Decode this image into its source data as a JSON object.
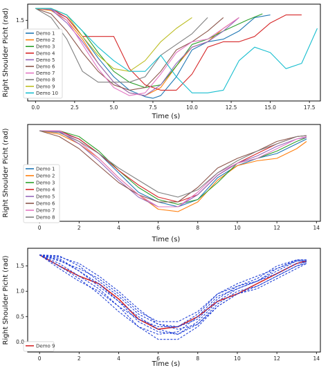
{
  "colors": [
    "#1f77b4",
    "#ff7f0e",
    "#2ca02c",
    "#d62728",
    "#9467bd",
    "#8c564b",
    "#e377c2",
    "#7f7f7f",
    "#bcbd22",
    "#17becf"
  ],
  "chart_data": [
    {
      "type": "line",
      "ylabel": "Right Shoulder Picht (rad)",
      "xlabel": "Time (s)",
      "xlim": [
        -0.5,
        18.2
      ],
      "ylim": [
        0.0,
        1.8
      ],
      "xticks": [
        0.0,
        2.5,
        5.0,
        7.5,
        10.0,
        12.5,
        15.0,
        17.5
      ],
      "xticklabels": [
        "0.0",
        "2.5",
        "5.0",
        "7.5",
        "10.0",
        "12.5",
        "15.0",
        "17.5"
      ],
      "yticks": [
        0.5,
        1.0,
        1.5
      ],
      "yticklabels": [
        "",
        "",
        "1.5"
      ],
      "legend": "left",
      "series": [
        {
          "name": "Demo 1",
          "x": [
            0,
            1,
            2,
            3,
            4,
            5,
            6,
            7,
            7.5,
            8,
            9,
            10,
            11,
            12,
            13,
            14,
            15
          ],
          "y": [
            1.72,
            1.7,
            1.55,
            1.2,
            0.8,
            0.45,
            0.2,
            0.08,
            0.05,
            0.1,
            0.45,
            0.95,
            1.1,
            1.15,
            1.3,
            1.55,
            1.6
          ]
        },
        {
          "name": "Demo 2",
          "x": [
            0,
            1,
            2,
            3,
            4,
            5,
            6,
            7,
            8,
            9,
            10,
            11,
            12,
            13
          ],
          "y": [
            1.72,
            1.68,
            1.5,
            1.15,
            0.7,
            0.35,
            0.15,
            0.1,
            0.25,
            0.65,
            1.0,
            1.1,
            1.35,
            1.55
          ]
        },
        {
          "name": "Demo 3",
          "x": [
            0,
            1,
            2,
            3,
            4,
            5,
            6,
            7,
            8,
            9,
            10,
            11,
            12,
            13.5,
            14.5
          ],
          "y": [
            1.72,
            1.72,
            1.6,
            1.3,
            0.9,
            0.55,
            0.35,
            0.25,
            0.3,
            0.65,
            1.05,
            1.15,
            1.3,
            1.5,
            1.62
          ]
        },
        {
          "name": "Demo 4",
          "x": [
            0,
            1,
            2,
            3,
            4,
            5,
            6,
            7,
            8,
            9,
            10,
            11,
            12,
            13,
            14,
            15,
            16,
            17
          ],
          "y": [
            1.72,
            1.72,
            1.55,
            1.2,
            1.2,
            1.2,
            0.6,
            0.3,
            0.2,
            0.2,
            0.5,
            1.0,
            1.1,
            1.1,
            1.2,
            1.45,
            1.6,
            1.6
          ]
        },
        {
          "name": "Demo 5",
          "x": [
            0,
            1,
            2,
            3,
            4,
            5,
            6,
            7,
            8,
            9,
            10,
            11,
            12,
            13
          ],
          "y": [
            1.72,
            1.7,
            1.45,
            1.1,
            0.7,
            0.35,
            0.15,
            0.1,
            0.3,
            0.7,
            1.0,
            1.1,
            1.3,
            1.55
          ]
        },
        {
          "name": "Demo 6",
          "x": [
            0,
            1,
            2,
            3,
            4,
            5,
            6,
            7,
            8,
            9,
            10,
            11,
            12
          ],
          "y": [
            1.72,
            1.62,
            1.3,
            0.9,
            0.55,
            0.3,
            0.2,
            0.25,
            0.55,
            0.95,
            1.1,
            1.3,
            1.55
          ]
        },
        {
          "name": "Demo 7",
          "x": [
            0,
            1,
            2,
            3,
            4,
            5,
            6,
            7,
            8,
            9,
            10,
            11,
            12,
            13
          ],
          "y": [
            1.72,
            1.72,
            1.5,
            1.05,
            0.6,
            0.25,
            0.1,
            0.15,
            0.5,
            0.9,
            1.1,
            1.15,
            1.35,
            1.55
          ]
        },
        {
          "name": "Demo 8",
          "x": [
            0,
            1,
            2,
            3,
            4,
            5,
            6,
            7,
            8,
            9,
            10,
            11
          ],
          "y": [
            1.72,
            1.55,
            1.15,
            0.55,
            0.35,
            0.35,
            0.35,
            0.45,
            0.85,
            1.05,
            1.25,
            1.55
          ]
        },
        {
          "name": "Demo 9",
          "x": [
            0,
            1,
            2,
            3,
            4,
            5,
            6,
            7,
            8,
            9,
            10
          ],
          "y": [
            1.72,
            1.72,
            1.6,
            1.2,
            0.85,
            0.6,
            0.55,
            0.75,
            1.1,
            1.35,
            1.55
          ]
        },
        {
          "name": "Demo 10",
          "x": [
            0,
            1,
            2,
            3,
            4,
            5,
            6,
            7,
            8,
            9,
            10,
            11,
            12,
            13,
            14,
            15,
            16,
            17,
            18
          ],
          "y": [
            1.72,
            1.72,
            1.6,
            1.3,
            1.0,
            0.75,
            0.55,
            0.55,
            0.85,
            0.45,
            0.15,
            0.15,
            0.2,
            0.75,
            1.0,
            0.9,
            0.6,
            0.7,
            1.35
          ]
        }
      ]
    },
    {
      "type": "line",
      "ylabel": "Right Shoulder Picht (rad)",
      "xlabel": "Time (s)",
      "xlim": [
        -0.6,
        14.2
      ],
      "ylim": [
        -0.15,
        1.85
      ],
      "xticks": [
        0,
        2,
        4,
        6,
        8,
        10,
        12,
        14
      ],
      "xticklabels": [
        "0",
        "2",
        "4",
        "6",
        "8",
        "10",
        "12",
        "14"
      ],
      "yticks": [],
      "yticklabels": [],
      "legend": "left",
      "series": [
        {
          "name": "Demo 1",
          "x": [
            0,
            1,
            2,
            3,
            4,
            5,
            6,
            7,
            8,
            9,
            10,
            11,
            12,
            13,
            13.5
          ],
          "y": [
            1.72,
            1.7,
            1.55,
            1.25,
            0.85,
            0.45,
            0.25,
            0.15,
            0.3,
            0.75,
            1.0,
            1.15,
            1.25,
            1.45,
            1.55
          ]
        },
        {
          "name": "Demo 2",
          "x": [
            0,
            1,
            2,
            3,
            4,
            5,
            6,
            7,
            8,
            9,
            10,
            11,
            12,
            13,
            13.5
          ],
          "y": [
            1.72,
            1.65,
            1.45,
            1.15,
            0.75,
            0.4,
            0.1,
            0.05,
            0.25,
            0.7,
            1.0,
            1.1,
            1.15,
            1.35,
            1.5
          ]
        },
        {
          "name": "Demo 3",
          "x": [
            0,
            1,
            2,
            3,
            4,
            5,
            6,
            7,
            8,
            9,
            10,
            11,
            12,
            13,
            13.5
          ],
          "y": [
            1.72,
            1.72,
            1.6,
            1.3,
            0.9,
            0.55,
            0.3,
            0.2,
            0.3,
            0.65,
            1.05,
            1.15,
            1.3,
            1.5,
            1.58
          ]
        },
        {
          "name": "Demo 4",
          "x": [
            0,
            1,
            2,
            3,
            4,
            5,
            6,
            7,
            8,
            9,
            10,
            11,
            12,
            13,
            13.5
          ],
          "y": [
            1.72,
            1.72,
            1.55,
            1.25,
            0.9,
            0.6,
            0.35,
            0.25,
            0.4,
            0.8,
            1.05,
            1.25,
            1.45,
            1.6,
            1.62
          ]
        },
        {
          "name": "Demo 5",
          "x": [
            0,
            1,
            2,
            3,
            4,
            5,
            6,
            7,
            8,
            9,
            10,
            11,
            12,
            13,
            13.5
          ],
          "y": [
            1.72,
            1.7,
            1.45,
            1.1,
            0.7,
            0.35,
            0.15,
            0.15,
            0.4,
            0.8,
            1.05,
            1.2,
            1.4,
            1.55,
            1.58
          ]
        },
        {
          "name": "Demo 6",
          "x": [
            0,
            1,
            2,
            3,
            4,
            5,
            6,
            7,
            8,
            9,
            10,
            11,
            12,
            13,
            13.5
          ],
          "y": [
            1.72,
            1.6,
            1.35,
            1.0,
            0.65,
            0.4,
            0.25,
            0.25,
            0.55,
            0.95,
            1.15,
            1.3,
            1.5,
            1.6,
            1.62
          ]
        },
        {
          "name": "Demo 7",
          "x": [
            0,
            1,
            2,
            3,
            4,
            5,
            6,
            7,
            8,
            9,
            10,
            11,
            12,
            13,
            13.5
          ],
          "y": [
            1.72,
            1.72,
            1.5,
            1.15,
            0.75,
            0.4,
            0.15,
            0.15,
            0.45,
            0.85,
            1.05,
            1.15,
            1.35,
            1.55,
            1.6
          ]
        },
        {
          "name": "Demo 8",
          "x": [
            0,
            1,
            2,
            3,
            4,
            5,
            6,
            7,
            8,
            9,
            10,
            11,
            12,
            13,
            13.5
          ],
          "y": [
            1.72,
            1.68,
            1.5,
            1.25,
            0.95,
            0.7,
            0.45,
            0.35,
            0.5,
            0.85,
            1.1,
            1.3,
            1.45,
            1.6,
            1.62
          ]
        }
      ]
    },
    {
      "type": "line",
      "ylabel": "Right Shoulder Picht (rad)",
      "xlabel": "Time (s)",
      "xlim": [
        -0.6,
        14.2
      ],
      "ylim": [
        -0.2,
        1.85
      ],
      "xticks": [
        0,
        2,
        4,
        6,
        8,
        10,
        12,
        14
      ],
      "xticklabels": [
        "0",
        "2",
        "4",
        "6",
        "8",
        "10",
        "12",
        "14"
      ],
      "yticks": [
        0.0,
        0.5,
        1.0,
        1.5
      ],
      "yticklabels": [
        "0.0",
        "0.5",
        "1.0",
        "1.5"
      ],
      "legend": "bottom-left",
      "series": [
        {
          "name": "Demo 9",
          "color": "#d62728",
          "style": "solid",
          "x": [
            0,
            1,
            2,
            3,
            4,
            5,
            6,
            7,
            8,
            9,
            10,
            11,
            12,
            13,
            13.5
          ],
          "y": [
            1.72,
            1.5,
            1.3,
            1.15,
            0.85,
            0.45,
            0.25,
            0.3,
            0.5,
            0.8,
            0.95,
            1.15,
            1.35,
            1.55,
            1.6
          ]
        },
        {
          "color": "#1f3fd6",
          "style": "dashed",
          "x": [
            0,
            1,
            2,
            3,
            4,
            5,
            6,
            7,
            8,
            9,
            10,
            11,
            12,
            13,
            13.5
          ],
          "y": [
            1.72,
            1.65,
            1.4,
            1.15,
            0.8,
            0.4,
            0.2,
            0.15,
            0.35,
            0.75,
            1.0,
            1.1,
            1.3,
            1.5,
            1.55
          ]
        },
        {
          "color": "#1f3fd6",
          "style": "dashed",
          "x": [
            0,
            1,
            2,
            3,
            4,
            5,
            6,
            7,
            8,
            9,
            10,
            11,
            12,
            13,
            13.5
          ],
          "y": [
            1.72,
            1.55,
            1.3,
            1.05,
            0.7,
            0.3,
            0.05,
            0.05,
            0.3,
            0.7,
            0.95,
            1.05,
            1.25,
            1.45,
            1.55
          ]
        },
        {
          "color": "#1f3fd6",
          "style": "dashed",
          "x": [
            0,
            1,
            2,
            3,
            4,
            5,
            6,
            7,
            8,
            9,
            10,
            11,
            12,
            13,
            13.5
          ],
          "y": [
            1.72,
            1.7,
            1.5,
            1.2,
            0.9,
            0.55,
            0.35,
            0.3,
            0.45,
            0.85,
            1.1,
            1.2,
            1.4,
            1.6,
            1.6
          ]
        },
        {
          "color": "#1f3fd6",
          "style": "dashed",
          "x": [
            0,
            1,
            2,
            3,
            4,
            5,
            6,
            7,
            8,
            9,
            10,
            11,
            12,
            13,
            13.5
          ],
          "y": [
            1.72,
            1.6,
            1.45,
            1.25,
            0.95,
            0.6,
            0.4,
            0.4,
            0.6,
            0.95,
            1.1,
            1.25,
            1.5,
            1.62,
            1.62
          ]
        },
        {
          "color": "#1f3fd6",
          "style": "dashed",
          "x": [
            0,
            1,
            2,
            3,
            4,
            5,
            6,
            7,
            8,
            9,
            10,
            11,
            12,
            13,
            13.5
          ],
          "y": [
            1.72,
            1.5,
            1.25,
            0.95,
            0.6,
            0.3,
            0.15,
            0.2,
            0.5,
            0.9,
            1.05,
            1.2,
            1.35,
            1.55,
            1.58
          ]
        },
        {
          "color": "#1f3fd6",
          "style": "dashed",
          "x": [
            0,
            1,
            2,
            3,
            4,
            5,
            6,
            7,
            8,
            9,
            10,
            11,
            12,
            13,
            13.5
          ],
          "y": [
            1.72,
            1.68,
            1.55,
            1.3,
            1.0,
            0.65,
            0.35,
            0.25,
            0.35,
            0.7,
            0.95,
            1.1,
            1.3,
            1.5,
            1.58
          ]
        },
        {
          "color": "#1f3fd6",
          "style": "dashed",
          "x": [
            0,
            1,
            2,
            3,
            4,
            5,
            6,
            7,
            8,
            9,
            10,
            11,
            12,
            13,
            13.5
          ],
          "y": [
            1.72,
            1.45,
            1.2,
            1.0,
            0.7,
            0.45,
            0.3,
            0.3,
            0.55,
            0.95,
            1.15,
            1.3,
            1.45,
            1.62,
            1.62
          ]
        },
        {
          "color": "#1f3fd6",
          "style": "dashed",
          "x": [
            0,
            1,
            2,
            3,
            4,
            5,
            6,
            7,
            8,
            9,
            10,
            11,
            12,
            13,
            13.5
          ],
          "y": [
            1.72,
            1.62,
            1.4,
            1.1,
            0.8,
            0.5,
            0.25,
            0.15,
            0.4,
            0.8,
            1.05,
            1.2,
            1.45,
            1.6,
            1.6
          ]
        }
      ]
    }
  ]
}
